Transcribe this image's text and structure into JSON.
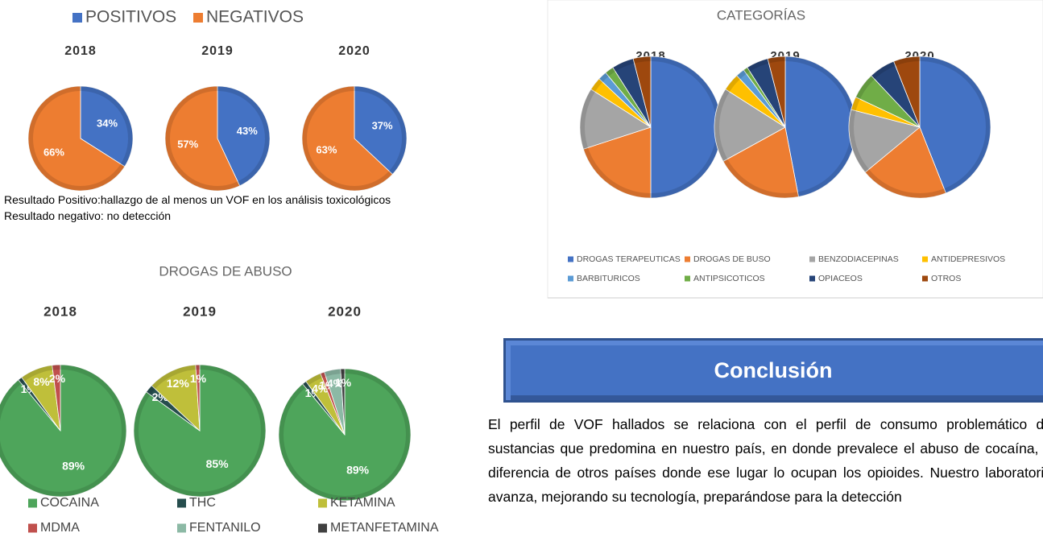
{
  "chart_data": [
    {
      "type": "pie",
      "categories": [
        "POSITIVOS",
        "NEGATIVOS"
      ],
      "colors": [
        "#4472c4",
        "#ed7d31"
      ],
      "series": [
        {
          "name": "2018",
          "values": [
            34,
            66
          ],
          "value_labels": [
            "34%",
            "66%"
          ]
        },
        {
          "name": "2019",
          "values": [
            43,
            57
          ],
          "value_labels": [
            "43%",
            "57%"
          ]
        },
        {
          "name": "2020",
          "values": [
            37,
            63
          ],
          "value_labels": [
            "37%",
            "63%"
          ]
        }
      ]
    },
    {
      "type": "pie",
      "title": "CATEGORÍAS",
      "categories": [
        "DROGAS TERAPEUTICAS",
        "DROGAS DE BUSO",
        "BENZODIACEPINAS",
        "ANTIDEPRESIVOS",
        "BARBITURICOS",
        "ANTIPSICOTICOS",
        "OPIACEOS",
        "OTROS"
      ],
      "colors": [
        "#4472c4",
        "#ed7d31",
        "#a5a5a5",
        "#ffc000",
        "#5b9bd5",
        "#70ad47",
        "#264478",
        "#9e480e"
      ],
      "series": [
        {
          "name": "2018",
          "values": [
            50,
            20,
            14,
            3,
            2,
            2,
            5,
            4
          ]
        },
        {
          "name": "2019",
          "values": [
            47,
            20,
            17,
            4,
            2,
            1,
            5,
            4
          ]
        },
        {
          "name": "2020",
          "values": [
            44,
            20,
            15,
            3,
            0,
            6,
            6,
            6
          ]
        }
      ]
    },
    {
      "type": "pie",
      "title": "DROGAS DE ABUSO",
      "categories": [
        "COCAINA",
        "THC",
        "KETAMINA",
        "MDMA",
        "FENTANILO",
        "METANFETAMINA"
      ],
      "colors": [
        "#4ea55b",
        "#264d4d",
        "#bfbf3a",
        "#c0504d",
        "#8cb9a5",
        "#404040"
      ],
      "series": [
        {
          "name": "2018",
          "values": [
            89,
            1,
            8,
            2,
            0,
            0
          ],
          "value_labels": [
            "89%",
            "1%",
            "8%",
            "2%",
            null,
            null
          ]
        },
        {
          "name": "2019",
          "values": [
            85,
            2,
            12,
            1,
            0,
            0
          ],
          "value_labels": [
            "85%",
            "2%",
            "12%",
            "1%",
            null,
            null
          ]
        },
        {
          "name": "2020",
          "values": [
            89,
            1,
            4,
            1,
            4,
            1
          ],
          "value_labels": [
            "89%",
            "1%",
            "4%",
            "1%",
            "4%",
            "1%"
          ]
        }
      ]
    }
  ],
  "notes": [
    "Resultado Positivo:hallazgo de al menos un VOF en los análisis toxicológicos",
    "Resultado negativo: no detección"
  ],
  "conclusion": {
    "title": "Conclusión",
    "text": "El perfil de VOF hallados se relaciona con el perfil de consumo problemático de sustancias que predomina en nuestro país, en donde prevalece el abuso de cocaína, a diferencia de otros países donde ese lugar lo ocupan los opioides. Nuestro laboratorio avanza, mejorando su tecnología, preparándose para la detección"
  }
}
